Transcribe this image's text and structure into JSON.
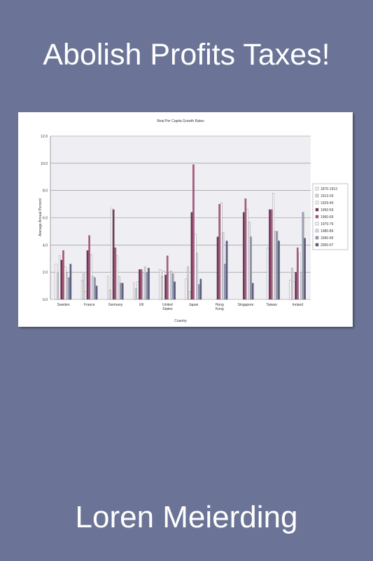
{
  "cover": {
    "title": "Abolish Profits Taxes!",
    "author": "Loren Meierding"
  },
  "colors": {
    "background": "#6b7496",
    "text": "#ffffff",
    "plot_area": "#efeef3"
  },
  "chart_data": {
    "type": "bar",
    "title": "Real Per Capita Growth Rates",
    "xlabel": "Country",
    "ylabel": "Average Annual Percent",
    "ylim": [
      0,
      12
    ],
    "yticks": [
      "0.0",
      "2.0",
      "4.0",
      "6.0",
      "8.0",
      "10.0",
      "12.0"
    ],
    "grid": true,
    "legend_position": "right",
    "categories": [
      "Sweden",
      "France",
      "Germany",
      "UK",
      "United States",
      "Japan",
      "Hong Kong",
      "Singapore",
      "Taiwan",
      "Ireland"
    ],
    "series": [
      {
        "name": "1870-1913",
        "color": "#ffffff",
        "values": [
          2.6,
          1.4,
          1.7,
          1.2,
          2.2,
          1.5,
          null,
          null,
          null,
          1.4
        ]
      },
      {
        "name": "1913-29",
        "color": "#e4e0ec",
        "values": [
          1.9,
          1.9,
          0.7,
          0.8,
          1.7,
          2.4,
          null,
          null,
          null,
          2.3
        ]
      },
      {
        "name": "1929-49",
        "color": "#ffffff",
        "values": [
          3.2,
          0.6,
          6.7,
          1.3,
          2.1,
          0.6,
          null,
          null,
          3.8,
          1.3
        ]
      },
      {
        "name": "1950-59",
        "color": "#7a2c5a",
        "values": [
          2.9,
          3.6,
          6.6,
          2.2,
          1.8,
          6.4,
          4.6,
          6.4,
          6.6,
          2.0
        ]
      },
      {
        "name": "1960-69",
        "color": "#c84c86",
        "values": [
          3.6,
          4.7,
          3.8,
          2.2,
          3.2,
          9.9,
          7.0,
          7.4,
          6.6,
          3.8
        ]
      },
      {
        "name": "1970-79",
        "color": "#ffffff",
        "values": [
          2.4,
          3.3,
          3.2,
          2.0,
          2.0,
          4.8,
          7.1,
          6.6,
          7.8,
          3.4
        ]
      },
      {
        "name": "1980-89",
        "color": "#e8e4f0",
        "values": [
          2.0,
          1.7,
          1.7,
          2.4,
          2.1,
          3.4,
          4.9,
          5.7,
          5.0,
          2.0
        ]
      },
      {
        "name": "1990-99",
        "color": "#9ea4c0",
        "values": [
          1.6,
          1.6,
          1.2,
          2.0,
          1.9,
          1.1,
          2.6,
          4.6,
          5.0,
          6.4
        ]
      },
      {
        "name": "2000-07",
        "color": "#5c6080",
        "values": [
          2.6,
          1.0,
          1.2,
          2.3,
          1.3,
          1.5,
          4.3,
          1.2,
          4.3,
          4.5
        ]
      }
    ]
  }
}
